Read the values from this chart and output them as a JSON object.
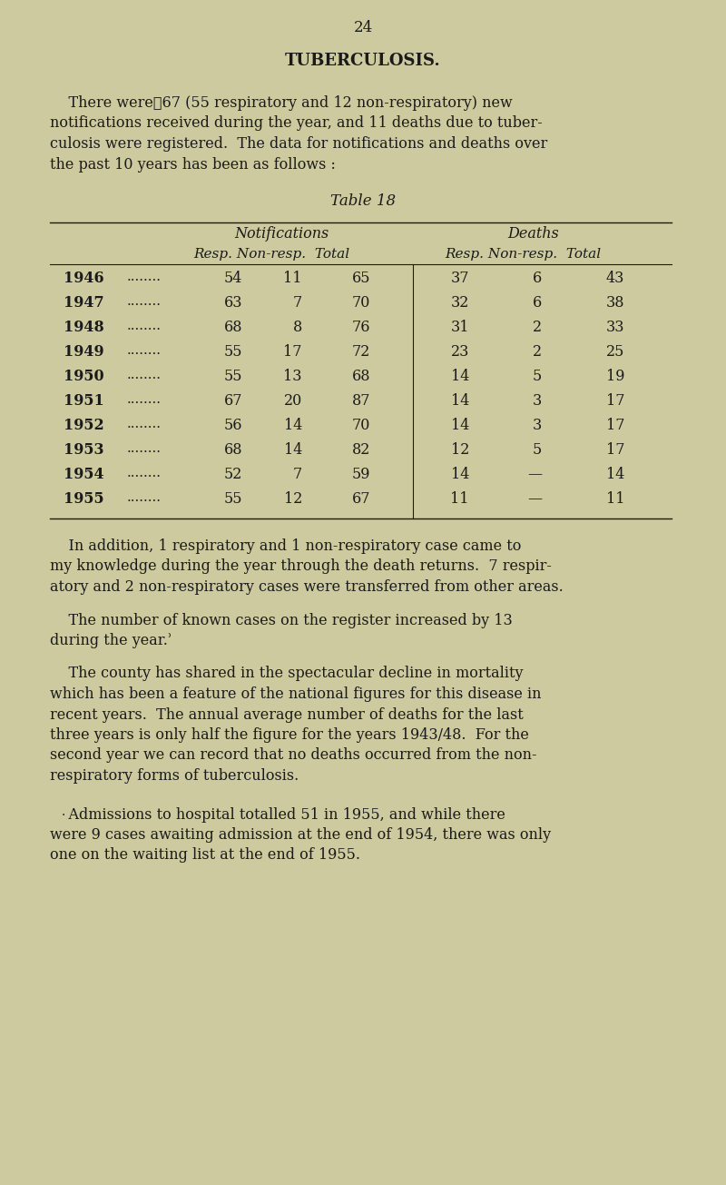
{
  "page_number": "24",
  "title": "TUBERCULOSIS.",
  "bg_color": "#ceca9f",
  "text_color": "#1a1a1a",
  "years": [
    "1946",
    "1947",
    "1948",
    "1949",
    "1950",
    "1951",
    "1952",
    "1953",
    "1954",
    "1955"
  ],
  "dots": [
    "........",
    "........",
    "........",
    "........",
    "........",
    "........",
    "........",
    "........",
    "........",
    "........"
  ],
  "notif_resp": [
    54,
    63,
    68,
    55,
    55,
    67,
    56,
    68,
    52,
    55
  ],
  "notif_nonresp": [
    11,
    7,
    8,
    17,
    13,
    20,
    14,
    14,
    7,
    12
  ],
  "notif_total": [
    65,
    70,
    76,
    72,
    68,
    87,
    70,
    82,
    59,
    67
  ],
  "deaths_resp": [
    37,
    32,
    31,
    23,
    14,
    14,
    14,
    12,
    14,
    11
  ],
  "deaths_nonresp": [
    "6",
    "6",
    "2",
    "2",
    "5",
    "3",
    "3",
    "5",
    "—",
    "—"
  ],
  "deaths_total": [
    43,
    38,
    33,
    25,
    19,
    17,
    17,
    17,
    14,
    11
  ],
  "intro_lines": [
    "    There were⍲67 (55 respiratory and 12 non-respiratory) new",
    "notifications received during the year, and 11 deaths due to tuber-",
    "culosis were registered.  The data for notifications and deaths over",
    "the past 10 years has been as follows :"
  ],
  "table_title": "Table 18",
  "para2_lines": [
    "    In addition, 1 respiratory and 1 non-respiratory case came to",
    "my knowledge during the year through the death returns.  7 respir-",
    "atory and 2 non-respiratory cases were transferred from other areas."
  ],
  "para3_lines": [
    "    The number of known cases on the register increased by 13",
    "during the year.ʾ"
  ],
  "para4_lines": [
    "    The county has shared in the spectacular decline in mortality",
    "which has been a feature of the national figures for this disease in",
    "recent years.  The annual average number of deaths for the last",
    "three years is only half the figure for the years 1943/48.  For the",
    "second year we can record that no deaths occurred from the non-",
    "respiratory forms of tuberculosis."
  ],
  "para5_lines": [
    "    Admissions to hospital totalled 51 in 1955, and while there",
    "were 9 cases awaiting admission at the end of 1954, there was only",
    "one on the waiting list at the end of 1955."
  ]
}
